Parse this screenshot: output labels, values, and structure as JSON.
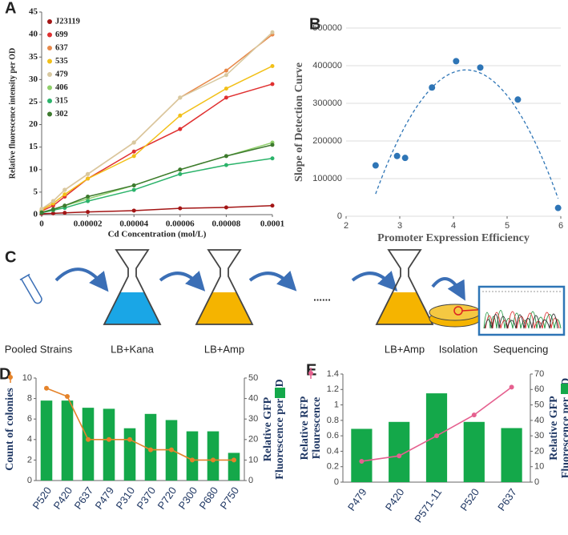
{
  "chart_data": [
    {
      "type": "line",
      "label": "A",
      "xlabel": "Cd Concentration (mol/L)",
      "ylabel": "Relative fluorescence intensity per OD",
      "x": [
        0,
        5e-06,
        1e-05,
        2e-05,
        4e-05,
        6e-05,
        8e-05,
        0.0001
      ],
      "xlim": [
        0,
        0.0001
      ],
      "xticks": [
        0,
        2e-05,
        4e-05,
        6e-05,
        8e-05,
        0.0001
      ],
      "ylim": [
        0,
        45
      ],
      "yticks": [
        0,
        5,
        10,
        15,
        20,
        25,
        30,
        35,
        40,
        45
      ],
      "grid": false,
      "series": [
        {
          "name": "J23119",
          "color": "#a31515",
          "values": [
            0.2,
            0.3,
            0.4,
            0.6,
            0.9,
            1.4,
            1.6,
            2.0
          ]
        },
        {
          "name": "699",
          "color": "#e03030",
          "values": [
            0.8,
            2,
            4,
            8,
            14,
            19,
            26,
            29
          ]
        },
        {
          "name": "637",
          "color": "#e8894a",
          "values": [
            1.2,
            3,
            5.5,
            9,
            16,
            26,
            32,
            40
          ]
        },
        {
          "name": "535",
          "color": "#f2c018",
          "values": [
            1,
            2.5,
            4.5,
            8,
            13,
            22,
            28,
            33
          ]
        },
        {
          "name": "479",
          "color": "#d8c9a0",
          "values": [
            1.3,
            3,
            5.5,
            9,
            16,
            26,
            31,
            40.5
          ]
        },
        {
          "name": "406",
          "color": "#8fcf6a",
          "values": [
            0.5,
            1,
            2,
            3.5,
            6.5,
            10,
            13,
            16
          ]
        },
        {
          "name": "315",
          "color": "#2bb36a",
          "values": [
            0.4,
            1,
            1.5,
            3,
            5.5,
            9,
            11,
            12.5
          ]
        },
        {
          "name": "302",
          "color": "#3d7a2e",
          "values": [
            0.5,
            1.2,
            2,
            4,
            6.5,
            10,
            13,
            15.5
          ]
        }
      ]
    },
    {
      "type": "scatter",
      "label": "B",
      "xlabel": "Promoter Expression Efficiency",
      "ylabel": "Slope of Detection Curve",
      "x": [
        2.55,
        2.95,
        3.1,
        3.6,
        4.05,
        4.5,
        5.2,
        5.95
      ],
      "values": [
        135000,
        160000,
        155000,
        342000,
        412000,
        395000,
        310000,
        22000
      ],
      "color": "#2e75b6",
      "trendline": "quadratic",
      "xlim": [
        2,
        6
      ],
      "xticks": [
        2,
        3,
        4,
        5,
        6
      ],
      "ylim": [
        0,
        500000
      ],
      "yticks": [
        0,
        100000,
        200000,
        300000,
        400000,
        500000
      ],
      "grid": true
    },
    {
      "type": "combo",
      "label": "D",
      "ylabel": [
        "Count of colonies"
      ],
      "y2label": [
        "Relative GFP",
        "Fluorescence per OD"
      ],
      "categories": [
        "P520",
        "P420",
        "P637",
        "P479",
        "P310",
        "P370",
        "P720",
        "P300",
        "P680",
        "P750"
      ],
      "ylim": [
        0,
        10
      ],
      "yticks": [
        0,
        2,
        4,
        6,
        8,
        10
      ],
      "y2lim": [
        0,
        50
      ],
      "y2ticks": [
        0,
        10,
        20,
        30,
        40,
        50
      ],
      "grid": false,
      "series": [
        {
          "type": "bar",
          "axis": "y2",
          "color": "#14a84a",
          "values": [
            39,
            39,
            35.5,
            35,
            25.5,
            32.5,
            29.5,
            24,
            24,
            13.5
          ]
        },
        {
          "type": "line",
          "color": "#e5832a",
          "values": [
            9,
            8.2,
            4,
            4,
            4,
            3,
            3,
            2,
            2,
            2
          ]
        }
      ]
    },
    {
      "type": "combo",
      "label": "E",
      "ylabel": [
        "Relative RFP",
        "Flourescence"
      ],
      "y2label": [
        "Relative GFP",
        "Fluorescence per OD"
      ],
      "categories": [
        "P479",
        "P420",
        "P571-11",
        "P520",
        "P637"
      ],
      "ylim": [
        0,
        1.4
      ],
      "yticks": [
        0,
        0.2,
        0.4,
        0.6,
        0.8,
        1,
        1.2,
        1.4
      ],
      "y2lim": [
        0,
        70
      ],
      "y2ticks": [
        0,
        10,
        20,
        30,
        40,
        50,
        60,
        70
      ],
      "grid": false,
      "series": [
        {
          "type": "bar",
          "axis": "y2",
          "color": "#14a84a",
          "values": [
            34.5,
            39,
            57.5,
            39,
            35
          ]
        },
        {
          "type": "line",
          "color": "#e5608f",
          "values": [
            0.27,
            0.34,
            0.6,
            0.87,
            1.23
          ]
        }
      ]
    }
  ],
  "diagram": {
    "label": "C",
    "steps": [
      "Pooled Strains",
      "LB+Kana",
      "LB+Amp",
      "......",
      "LB+Amp",
      "Isolation",
      "Sequencing"
    ]
  }
}
